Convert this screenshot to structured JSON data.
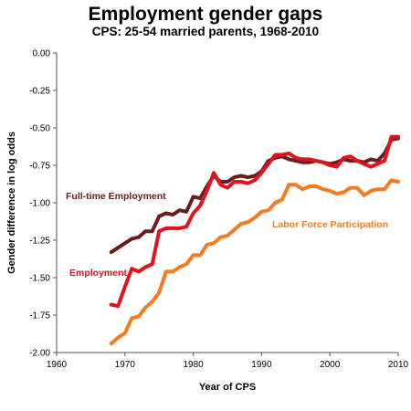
{
  "chart_data": {
    "type": "line",
    "title": "Employment gender gaps",
    "subtitle": "CPS: 25-54 married parents, 1968-2010",
    "xlabel": "Year of CPS",
    "ylabel": "Gender difference in log odds",
    "xlim": [
      1960,
      2010
    ],
    "ylim": [
      -2.0,
      0.0
    ],
    "x_ticks": [
      "1960",
      "1970",
      "1980",
      "1990",
      "2000",
      "2010"
    ],
    "y_ticks": [
      "0.00",
      "-0.25",
      "-0.50",
      "-0.75",
      "-1.00",
      "-1.25",
      "-1.50",
      "-1.75",
      "-2.00"
    ],
    "grid": false,
    "legend": "inline labels",
    "series": [
      {
        "name": "Full-time Employment",
        "color": "#6b1c1c",
        "x": [
          1968,
          1969,
          1970,
          1971,
          1972,
          1973,
          1974,
          1975,
          1976,
          1977,
          1978,
          1979,
          1980,
          1981,
          1982,
          1983,
          1984,
          1985,
          1986,
          1987,
          1988,
          1989,
          1990,
          1991,
          1992,
          1993,
          1994,
          1995,
          1996,
          1997,
          1998,
          1999,
          2000,
          2001,
          2002,
          2003,
          2004,
          2005,
          2006,
          2007,
          2008,
          2009,
          2010
        ],
        "y": [
          -1.33,
          -1.3,
          -1.27,
          -1.24,
          -1.23,
          -1.19,
          -1.19,
          -1.09,
          -1.07,
          -1.08,
          -1.05,
          -1.06,
          -0.96,
          -0.97,
          -0.89,
          -0.82,
          -0.86,
          -0.86,
          -0.83,
          -0.82,
          -0.83,
          -0.82,
          -0.79,
          -0.72,
          -0.7,
          -0.69,
          -0.71,
          -0.72,
          -0.73,
          -0.73,
          -0.72,
          -0.73,
          -0.74,
          -0.73,
          -0.71,
          -0.72,
          -0.72,
          -0.73,
          -0.71,
          -0.72,
          -0.67,
          -0.58,
          -0.57
        ]
      },
      {
        "name": "Employment",
        "color": "#e0141c",
        "x": [
          1968,
          1969,
          1970,
          1971,
          1972,
          1973,
          1974,
          1975,
          1976,
          1977,
          1978,
          1979,
          1980,
          1981,
          1982,
          1983,
          1984,
          1985,
          1986,
          1987,
          1988,
          1989,
          1990,
          1991,
          1992,
          1993,
          1994,
          1995,
          1996,
          1997,
          1998,
          1999,
          2000,
          2001,
          2002,
          2003,
          2004,
          2005,
          2006,
          2007,
          2008,
          2009,
          2010
        ],
        "y": [
          -1.68,
          -1.69,
          -1.56,
          -1.44,
          -1.46,
          -1.43,
          -1.41,
          -1.19,
          -1.17,
          -1.17,
          -1.17,
          -1.16,
          -1.07,
          -1.02,
          -0.92,
          -0.8,
          -0.88,
          -0.9,
          -0.86,
          -0.86,
          -0.87,
          -0.85,
          -0.8,
          -0.74,
          -0.68,
          -0.68,
          -0.67,
          -0.7,
          -0.71,
          -0.71,
          -0.72,
          -0.73,
          -0.75,
          -0.76,
          -0.7,
          -0.69,
          -0.72,
          -0.74,
          -0.76,
          -0.74,
          -0.72,
          -0.56,
          -0.56
        ]
      },
      {
        "name": "Labor Force Participation",
        "color": "#f47b20",
        "x": [
          1968,
          1969,
          1970,
          1971,
          1972,
          1973,
          1974,
          1975,
          1976,
          1977,
          1978,
          1979,
          1980,
          1981,
          1982,
          1983,
          1984,
          1985,
          1986,
          1987,
          1988,
          1989,
          1990,
          1991,
          1992,
          1993,
          1994,
          1995,
          1996,
          1997,
          1998,
          1999,
          2000,
          2001,
          2002,
          2003,
          2004,
          2005,
          2006,
          2007,
          2008,
          2009,
          2010
        ],
        "y": [
          -1.94,
          -1.9,
          -1.87,
          -1.77,
          -1.76,
          -1.7,
          -1.66,
          -1.6,
          -1.46,
          -1.46,
          -1.43,
          -1.41,
          -1.35,
          -1.35,
          -1.28,
          -1.27,
          -1.23,
          -1.22,
          -1.18,
          -1.14,
          -1.13,
          -1.1,
          -1.06,
          -1.05,
          -1.0,
          -0.98,
          -0.88,
          -0.88,
          -0.91,
          -0.89,
          -0.89,
          -0.91,
          -0.92,
          -0.94,
          -0.93,
          -0.9,
          -0.9,
          -0.95,
          -0.92,
          -0.91,
          -0.91,
          -0.85,
          -0.86
        ]
      }
    ]
  }
}
